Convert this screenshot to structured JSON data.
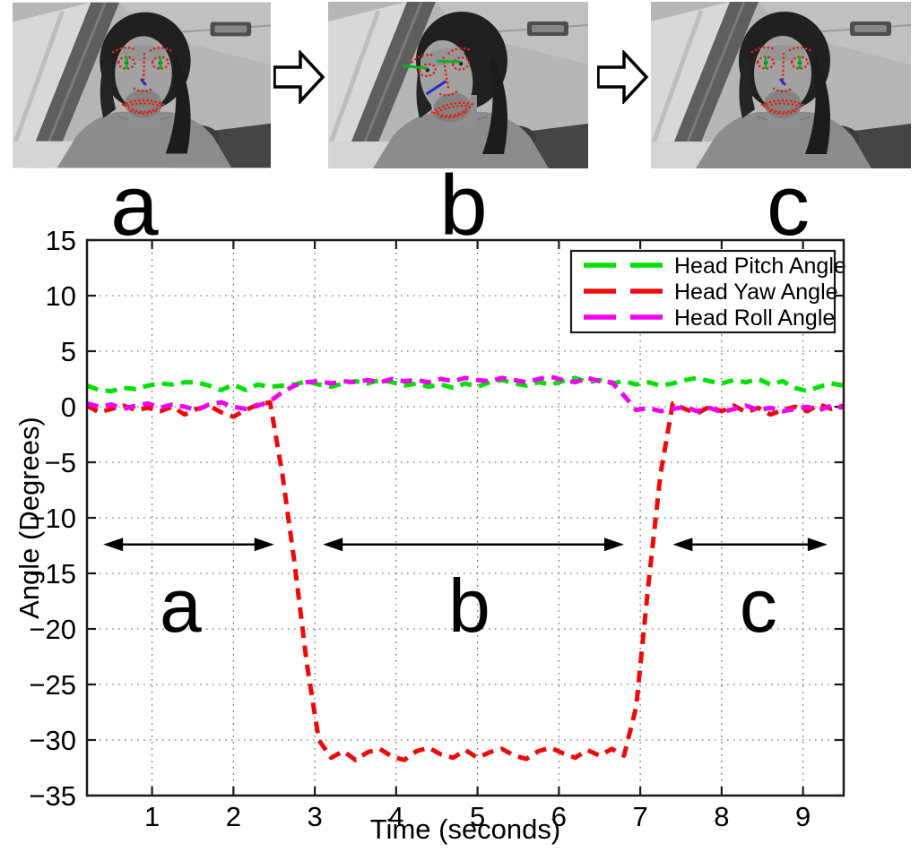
{
  "figure": {
    "frames": [
      {
        "label": "a",
        "alt": "driver facing camera, face landmarks tracked"
      },
      {
        "label": "b",
        "alt": "driver head turned, face landmarks tracked"
      },
      {
        "label": "c",
        "alt": "driver facing camera again, face landmarks tracked"
      }
    ],
    "colors": {
      "landmark_dots": "#e42111",
      "eye_pose_line": "#00b422",
      "nose_pose_line": "#2a2ac8"
    }
  },
  "chart_data": {
    "type": "line",
    "title": "",
    "xlabel": "Time (seconds)",
    "ylabel": "Angle (Degrees)",
    "xlim": [
      0.2,
      9.5
    ],
    "ylim": [
      -35,
      15
    ],
    "xticks": [
      1,
      2,
      3,
      4,
      5,
      6,
      7,
      8,
      9
    ],
    "yticks": [
      15,
      10,
      5,
      0,
      -5,
      -10,
      -15,
      -20,
      -25,
      -30,
      -35
    ],
    "grid": "dotted",
    "legend": {
      "position": "top-right"
    },
    "series": [
      {
        "name": "Head Pitch Angle",
        "color": "#00e000",
        "style": "dashed",
        "points": [
          [
            0.2,
            1.9
          ],
          [
            0.35,
            1.5
          ],
          [
            0.5,
            1.4
          ],
          [
            0.65,
            1.7
          ],
          [
            0.8,
            1.6
          ],
          [
            0.95,
            1.9
          ],
          [
            1.1,
            2.1
          ],
          [
            1.25,
            2.0
          ],
          [
            1.4,
            2.2
          ],
          [
            1.55,
            2.2
          ],
          [
            1.7,
            1.9
          ],
          [
            1.85,
            1.5
          ],
          [
            2.0,
            2.0
          ],
          [
            2.15,
            1.5
          ],
          [
            2.3,
            2.0
          ],
          [
            2.45,
            1.8
          ],
          [
            2.6,
            1.9
          ],
          [
            2.75,
            2.0
          ],
          [
            2.9,
            2.3
          ],
          [
            3.05,
            2.0
          ],
          [
            3.2,
            1.8
          ],
          [
            3.35,
            2.1
          ],
          [
            3.5,
            2.3
          ],
          [
            3.65,
            2.1
          ],
          [
            3.8,
            2.4
          ],
          [
            3.95,
            2.2
          ],
          [
            4.1,
            1.9
          ],
          [
            4.25,
            2.1
          ],
          [
            4.4,
            1.8
          ],
          [
            4.55,
            2.0
          ],
          [
            4.7,
            1.7
          ],
          [
            4.85,
            2.1
          ],
          [
            5.0,
            1.8
          ],
          [
            5.15,
            2.2
          ],
          [
            5.3,
            2.4
          ],
          [
            5.45,
            2.1
          ],
          [
            5.6,
            1.9
          ],
          [
            5.75,
            2.2
          ],
          [
            5.9,
            2.0
          ],
          [
            6.05,
            2.3
          ],
          [
            6.2,
            2.6
          ],
          [
            6.35,
            2.2
          ],
          [
            6.5,
            2.4
          ],
          [
            6.65,
            2.1
          ],
          [
            6.8,
            2.3
          ],
          [
            6.95,
            2.0
          ],
          [
            7.1,
            2.2
          ],
          [
            7.25,
            1.9
          ],
          [
            7.4,
            2.1
          ],
          [
            7.55,
            2.4
          ],
          [
            7.7,
            2.6
          ],
          [
            7.85,
            2.3
          ],
          [
            8.0,
            2.1
          ],
          [
            8.15,
            2.4
          ],
          [
            8.3,
            2.2
          ],
          [
            8.45,
            2.5
          ],
          [
            8.6,
            2.0
          ],
          [
            8.75,
            2.3
          ],
          [
            8.9,
            1.7
          ],
          [
            9.05,
            1.4
          ],
          [
            9.2,
            1.8
          ],
          [
            9.35,
            2.1
          ],
          [
            9.5,
            1.9
          ]
        ]
      },
      {
        "name": "Head Yaw Angle",
        "color": "#ee0a0a",
        "style": "dashed",
        "points": [
          [
            0.2,
            0.1
          ],
          [
            0.35,
            -0.5
          ],
          [
            0.5,
            -0.2
          ],
          [
            0.65,
            0.1
          ],
          [
            0.8,
            -0.3
          ],
          [
            0.95,
            -0.1
          ],
          [
            1.1,
            -0.4
          ],
          [
            1.25,
            0.0
          ],
          [
            1.4,
            -0.7
          ],
          [
            1.55,
            -0.2
          ],
          [
            1.7,
            0.1
          ],
          [
            1.85,
            -0.5
          ],
          [
            2.0,
            -0.9
          ],
          [
            2.15,
            -0.3
          ],
          [
            2.3,
            0.2
          ],
          [
            2.45,
            0.4
          ],
          [
            2.6,
            -6.0
          ],
          [
            2.75,
            -14.0
          ],
          [
            2.9,
            -23.0
          ],
          [
            3.05,
            -30.0
          ],
          [
            3.2,
            -31.6
          ],
          [
            3.35,
            -31.0
          ],
          [
            3.5,
            -31.8
          ],
          [
            3.65,
            -31.1
          ],
          [
            3.8,
            -30.8
          ],
          [
            3.95,
            -31.5
          ],
          [
            4.1,
            -31.8
          ],
          [
            4.25,
            -31.0
          ],
          [
            4.4,
            -30.7
          ],
          [
            4.55,
            -31.3
          ],
          [
            4.7,
            -31.6
          ],
          [
            4.85,
            -30.9
          ],
          [
            5.0,
            -31.6
          ],
          [
            5.15,
            -31.1
          ],
          [
            5.3,
            -30.8
          ],
          [
            5.45,
            -31.4
          ],
          [
            5.6,
            -31.7
          ],
          [
            5.75,
            -31.0
          ],
          [
            5.9,
            -30.7
          ],
          [
            6.05,
            -31.2
          ],
          [
            6.2,
            -31.6
          ],
          [
            6.35,
            -30.9
          ],
          [
            6.5,
            -31.4
          ],
          [
            6.65,
            -30.8
          ],
          [
            6.8,
            -31.4
          ],
          [
            6.95,
            -27.0
          ],
          [
            7.1,
            -16.0
          ],
          [
            7.25,
            -6.0
          ],
          [
            7.4,
            0.3
          ],
          [
            7.55,
            -0.2
          ],
          [
            7.7,
            -0.6
          ],
          [
            7.85,
            0.0
          ],
          [
            8.0,
            -0.4
          ],
          [
            8.15,
            0.1
          ],
          [
            8.3,
            -0.5
          ],
          [
            8.45,
            -0.1
          ],
          [
            8.6,
            -0.7
          ],
          [
            8.75,
            -0.3
          ],
          [
            8.9,
            0.0
          ],
          [
            9.05,
            -0.4
          ],
          [
            9.2,
            0.2
          ],
          [
            9.35,
            -0.2
          ],
          [
            9.5,
            0.1
          ]
        ]
      },
      {
        "name": "Head Roll Angle",
        "color": "#f000f0",
        "style": "dashed",
        "points": [
          [
            0.2,
            0.3
          ],
          [
            0.35,
            0.0
          ],
          [
            0.5,
            0.2
          ],
          [
            0.65,
            -0.2
          ],
          [
            0.8,
            0.1
          ],
          [
            0.95,
            0.3
          ],
          [
            1.1,
            -0.1
          ],
          [
            1.25,
            0.2
          ],
          [
            1.4,
            0.0
          ],
          [
            1.55,
            -0.3
          ],
          [
            1.7,
            0.2
          ],
          [
            1.85,
            0.4
          ],
          [
            2.0,
            0.0
          ],
          [
            2.15,
            -0.2
          ],
          [
            2.3,
            0.1
          ],
          [
            2.45,
            0.5
          ],
          [
            2.6,
            1.3
          ],
          [
            2.75,
            1.9
          ],
          [
            2.9,
            2.2
          ],
          [
            3.05,
            2.3
          ],
          [
            3.2,
            2.1
          ],
          [
            3.35,
            2.3
          ],
          [
            3.5,
            2.2
          ],
          [
            3.65,
            2.4
          ],
          [
            3.8,
            2.2
          ],
          [
            3.95,
            2.5
          ],
          [
            4.1,
            2.3
          ],
          [
            4.25,
            2.4
          ],
          [
            4.4,
            2.2
          ],
          [
            4.55,
            2.5
          ],
          [
            4.7,
            2.3
          ],
          [
            4.85,
            2.6
          ],
          [
            5.0,
            2.4
          ],
          [
            5.15,
            2.3
          ],
          [
            5.3,
            2.6
          ],
          [
            5.45,
            2.4
          ],
          [
            5.6,
            2.2
          ],
          [
            5.75,
            2.5
          ],
          [
            5.9,
            2.7
          ],
          [
            6.05,
            2.4
          ],
          [
            6.2,
            2.2
          ],
          [
            6.35,
            2.6
          ],
          [
            6.5,
            2.3
          ],
          [
            6.65,
            2.2
          ],
          [
            6.8,
            1.0
          ],
          [
            6.95,
            -0.3
          ],
          [
            7.1,
            -0.1
          ],
          [
            7.25,
            -0.4
          ],
          [
            7.4,
            -0.2
          ],
          [
            7.55,
            0.0
          ],
          [
            7.7,
            -0.4
          ],
          [
            7.85,
            -0.1
          ],
          [
            8.0,
            -0.5
          ],
          [
            8.15,
            -0.2
          ],
          [
            8.3,
            0.1
          ],
          [
            8.45,
            -0.3
          ],
          [
            8.6,
            -0.1
          ],
          [
            8.75,
            -0.4
          ],
          [
            8.9,
            -0.2
          ],
          [
            9.05,
            0.0
          ],
          [
            9.2,
            -0.3
          ],
          [
            9.35,
            0.1
          ],
          [
            9.5,
            -0.1
          ]
        ]
      }
    ],
    "annotations": {
      "regions": [
        {
          "label": "a",
          "x_start": 0.4,
          "x_end": 2.5,
          "arrow_y": -12.4,
          "label_x": 1.35,
          "label_y": -18
        },
        {
          "label": "b",
          "x_start": 3.1,
          "x_end": 6.8,
          "arrow_y": -12.4,
          "label_x": 4.9,
          "label_y": -18
        },
        {
          "label": "c",
          "x_start": 7.4,
          "x_end": 9.3,
          "arrow_y": -12.4,
          "label_x": 8.45,
          "label_y": -18
        }
      ]
    }
  }
}
